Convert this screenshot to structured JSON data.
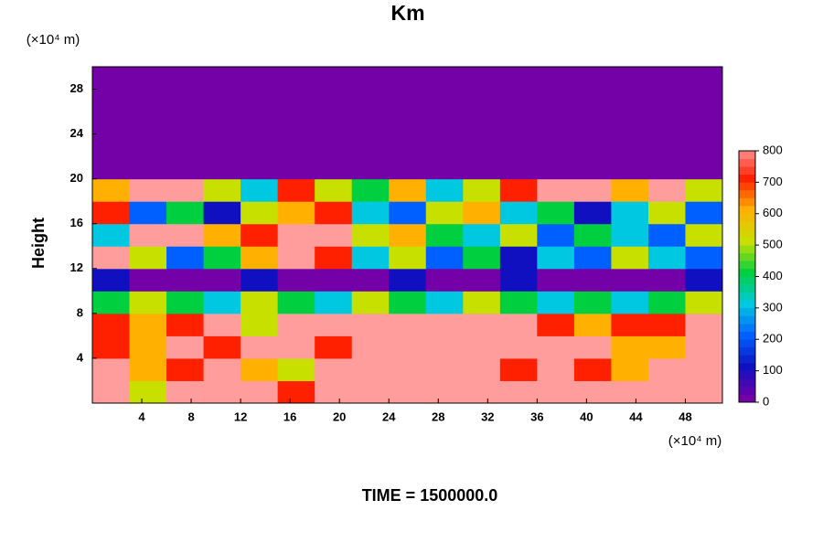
{
  "chart_data": {
    "type": "heatmap",
    "title": "Km",
    "y_unit_label": "(×10⁴ m)",
    "x_unit_label": "(×10⁴ m)",
    "ylabel": "Height",
    "annotation": "TIME = 1500000.0",
    "xlim": [
      0,
      51
    ],
    "ylim": [
      0,
      30
    ],
    "xticks": [
      4,
      8,
      12,
      16,
      20,
      24,
      28,
      32,
      36,
      40,
      44,
      48
    ],
    "yticks": [
      4,
      8,
      12,
      16,
      20,
      24,
      28
    ],
    "x": [
      1.5,
      4.5,
      7.5,
      10.5,
      13.5,
      16.5,
      19.5,
      22.5,
      25.5,
      28.5,
      31.5,
      34.5,
      37.5,
      40.5,
      43.5,
      46.5,
      49.5
    ],
    "y": [
      1,
      3,
      5,
      7,
      9,
      11,
      13,
      15,
      17,
      19,
      21,
      23,
      25,
      27,
      29
    ],
    "z": [
      [
        800,
        500,
        800,
        800,
        800,
        700,
        800,
        800,
        800,
        800,
        800,
        800,
        800,
        800,
        800,
        800,
        800
      ],
      [
        800,
        600,
        700,
        800,
        600,
        500,
        800,
        800,
        800,
        800,
        800,
        700,
        800,
        700,
        600,
        800,
        800
      ],
      [
        700,
        600,
        800,
        700,
        800,
        800,
        700,
        800,
        800,
        800,
        800,
        800,
        800,
        800,
        600,
        600,
        800
      ],
      [
        700,
        600,
        700,
        800,
        500,
        800,
        800,
        800,
        800,
        800,
        800,
        800,
        700,
        600,
        700,
        700,
        800
      ],
      [
        400,
        500,
        400,
        300,
        500,
        400,
        300,
        500,
        400,
        300,
        500,
        400,
        300,
        400,
        300,
        400,
        500
      ],
      [
        100,
        0,
        0,
        0,
        100,
        0,
        0,
        0,
        100,
        0,
        0,
        100,
        0,
        0,
        0,
        0,
        100
      ],
      [
        800,
        500,
        200,
        400,
        600,
        800,
        700,
        300,
        500,
        200,
        400,
        100,
        300,
        200,
        500,
        300,
        200
      ],
      [
        300,
        800,
        800,
        600,
        700,
        800,
        800,
        500,
        600,
        400,
        300,
        500,
        200,
        400,
        300,
        200,
        500
      ],
      [
        700,
        200,
        400,
        100,
        500,
        600,
        700,
        300,
        200,
        500,
        600,
        300,
        400,
        100,
        300,
        500,
        200
      ],
      [
        600,
        800,
        800,
        500,
        300,
        700,
        500,
        400,
        600,
        300,
        500,
        700,
        800,
        800,
        600,
        800,
        500
      ],
      [
        0,
        0,
        0,
        0,
        0,
        0,
        0,
        0,
        0,
        0,
        0,
        0,
        0,
        0,
        0,
        0,
        0
      ],
      [
        0,
        0,
        0,
        0,
        0,
        0,
        0,
        0,
        0,
        0,
        0,
        0,
        0,
        0,
        0,
        0,
        0
      ],
      [
        0,
        0,
        0,
        0,
        0,
        0,
        0,
        0,
        0,
        0,
        0,
        0,
        0,
        0,
        0,
        0,
        0
      ],
      [
        0,
        0,
        0,
        0,
        0,
        0,
        0,
        0,
        0,
        0,
        0,
        0,
        0,
        0,
        0,
        0,
        0
      ],
      [
        0,
        0,
        0,
        0,
        0,
        0,
        0,
        0,
        0,
        0,
        0,
        0,
        0,
        0,
        0,
        0,
        0
      ]
    ],
    "colorbar_ticks": [
      0,
      100,
      200,
      300,
      400,
      500,
      600,
      700,
      800
    ],
    "colors": [
      "#7400a8",
      "#1010c0",
      "#0060ff",
      "#00c8e0",
      "#00d040",
      "#c8e000",
      "#ffb000",
      "#ff2000",
      "#ff9c9c"
    ]
  }
}
